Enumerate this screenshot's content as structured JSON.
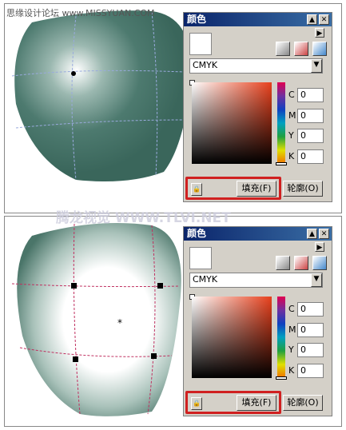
{
  "watermarks": [
    "思缘设计论坛 www.MISSYUAN.COM",
    "腾龙视觉 WWW.TLVI.NET"
  ],
  "panels": [
    {
      "title": "颜色",
      "model": "CMYK",
      "channels": [
        {
          "label": "C",
          "value": 0
        },
        {
          "label": "M",
          "value": 0
        },
        {
          "label": "Y",
          "value": 0
        },
        {
          "label": "K",
          "value": 0
        }
      ],
      "fill_button": "填充(F)",
      "outline_button": "轮廓(O)"
    },
    {
      "title": "颜色",
      "model": "CMYK",
      "channels": [
        {
          "label": "C",
          "value": 0
        },
        {
          "label": "M",
          "value": 0
        },
        {
          "label": "Y",
          "value": 0
        },
        {
          "label": "K",
          "value": 0
        }
      ],
      "fill_button": "填充(F)",
      "outline_button": "轮廓(O)"
    }
  ]
}
